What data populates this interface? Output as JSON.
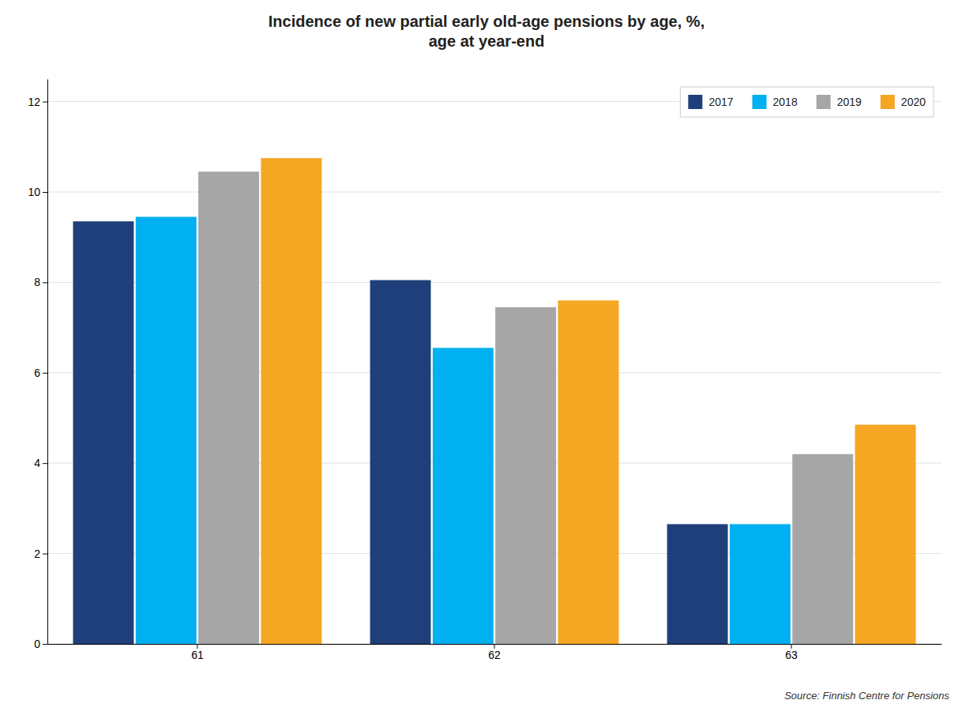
{
  "chart_data": {
    "type": "bar",
    "title": "Incidence of new partial early old-age pensions by age, %,\nage at year-end",
    "categories": [
      "61",
      "62",
      "63"
    ],
    "series": [
      {
        "name": "2017",
        "color": "#1f3f7a",
        "values": [
          9.35,
          8.05,
          2.65
        ]
      },
      {
        "name": "2018",
        "color": "#00b0f0",
        "values": [
          9.45,
          6.55,
          2.65
        ]
      },
      {
        "name": "2019",
        "color": "#a6a6a6",
        "values": [
          10.45,
          7.45,
          4.2
        ]
      },
      {
        "name": "2020",
        "color": "#f5a623",
        "values": [
          10.75,
          7.6,
          4.85
        ]
      }
    ],
    "ylim": [
      0,
      12.5
    ],
    "yticks": [
      0,
      2,
      4,
      6,
      8,
      10,
      12
    ],
    "grid": true,
    "legend": "upper right",
    "annotations": [
      "Source: Finnish Centre for Pensions"
    ]
  }
}
